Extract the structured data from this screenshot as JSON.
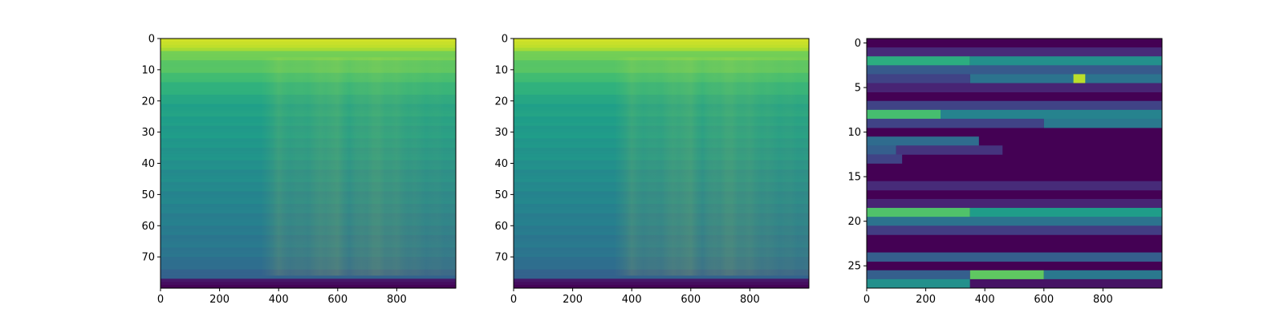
{
  "chart_data": [
    {
      "type": "heatmap",
      "colormap": "viridis",
      "title": "",
      "xlabel": "",
      "ylabel": "",
      "xlim": [
        0,
        1000
      ],
      "ylim": [
        80,
        0
      ],
      "n_rows": 80,
      "n_cols": 1000,
      "x_ticks": [
        0,
        200,
        400,
        600,
        800
      ],
      "y_ticks": [
        0,
        10,
        20,
        30,
        40,
        50,
        60,
        70
      ],
      "row_intensity": [
        {
          "row": 0,
          "value": 0.95
        },
        {
          "row": 2,
          "value": 0.9
        },
        {
          "row": 4,
          "value": 0.8
        },
        {
          "row": 8,
          "value": 0.74
        },
        {
          "row": 10,
          "value": 0.72
        },
        {
          "row": 14,
          "value": 0.66
        },
        {
          "row": 20,
          "value": 0.58
        },
        {
          "row": 30,
          "value": 0.54
        },
        {
          "row": 40,
          "value": 0.5
        },
        {
          "row": 50,
          "value": 0.46
        },
        {
          "row": 60,
          "value": 0.42
        },
        {
          "row": 70,
          "value": 0.38
        },
        {
          "row": 76,
          "value": 0.3
        },
        {
          "row": 77,
          "value": 0.08
        },
        {
          "row": 79,
          "value": 0.0
        }
      ],
      "column_activity": [
        {
          "col": 0,
          "value": 0.0
        },
        {
          "col": 340,
          "value": 0.0
        },
        {
          "col": 400,
          "value": 0.45
        },
        {
          "col": 450,
          "value": 0.3
        },
        {
          "col": 500,
          "value": 0.35
        },
        {
          "col": 590,
          "value": 0.6
        },
        {
          "col": 640,
          "value": 0.3
        },
        {
          "col": 720,
          "value": 0.6
        },
        {
          "col": 800,
          "value": 0.5
        },
        {
          "col": 880,
          "value": 0.35
        },
        {
          "col": 1000,
          "value": 0.3
        }
      ]
    },
    {
      "type": "heatmap",
      "colormap": "viridis",
      "title": "",
      "xlabel": "",
      "ylabel": "",
      "xlim": [
        0,
        1000
      ],
      "ylim": [
        80,
        0
      ],
      "n_rows": 80,
      "n_cols": 1000,
      "x_ticks": [
        0,
        200,
        400,
        600,
        800
      ],
      "y_ticks": [
        0,
        10,
        20,
        30,
        40,
        50,
        60,
        70
      ],
      "row_intensity": [
        {
          "row": 0,
          "value": 0.95
        },
        {
          "row": 2,
          "value": 0.9
        },
        {
          "row": 4,
          "value": 0.8
        },
        {
          "row": 8,
          "value": 0.74
        },
        {
          "row": 10,
          "value": 0.72
        },
        {
          "row": 14,
          "value": 0.66
        },
        {
          "row": 20,
          "value": 0.58
        },
        {
          "row": 30,
          "value": 0.54
        },
        {
          "row": 40,
          "value": 0.5
        },
        {
          "row": 50,
          "value": 0.46
        },
        {
          "row": 60,
          "value": 0.42
        },
        {
          "row": 70,
          "value": 0.38
        },
        {
          "row": 76,
          "value": 0.3
        },
        {
          "row": 77,
          "value": 0.08
        },
        {
          "row": 79,
          "value": 0.0
        }
      ],
      "column_activity": [
        {
          "col": 0,
          "value": 0.0
        },
        {
          "col": 340,
          "value": 0.0
        },
        {
          "col": 400,
          "value": 0.45
        },
        {
          "col": 450,
          "value": 0.3
        },
        {
          "col": 500,
          "value": 0.35
        },
        {
          "col": 590,
          "value": 0.6
        },
        {
          "col": 640,
          "value": 0.3
        },
        {
          "col": 720,
          "value": 0.6
        },
        {
          "col": 800,
          "value": 0.5
        },
        {
          "col": 880,
          "value": 0.35
        },
        {
          "col": 1000,
          "value": 0.3
        }
      ]
    },
    {
      "type": "heatmap",
      "colormap": "viridis",
      "title": "",
      "xlabel": "",
      "ylabel": "",
      "xlim": [
        0,
        1000
      ],
      "ylim": [
        27.5,
        -0.5
      ],
      "n_rows": 28,
      "n_cols": 1000,
      "x_ticks": [
        0,
        200,
        400,
        600,
        800
      ],
      "y_ticks": [
        0,
        5,
        10,
        15,
        20,
        25
      ],
      "row_segments": [
        {
          "row": 1,
          "segments": [
            [
              0,
              1000,
              0.12
            ]
          ]
        },
        {
          "row": 2,
          "segments": [
            [
              0,
              350,
              0.62
            ],
            [
              350,
              1000,
              0.5
            ]
          ]
        },
        {
          "row": 3,
          "segments": [
            [
              0,
              1000,
              0.28
            ]
          ]
        },
        {
          "row": 4,
          "segments": [
            [
              0,
              350,
              0.2
            ],
            [
              350,
              1000,
              0.38
            ],
            [
              700,
              740,
              0.9
            ]
          ]
        },
        {
          "row": 5,
          "segments": [
            [
              0,
              1000,
              0.1
            ]
          ]
        },
        {
          "row": 7,
          "segments": [
            [
              0,
              1000,
              0.2
            ]
          ]
        },
        {
          "row": 8,
          "segments": [
            [
              0,
              250,
              0.7
            ],
            [
              250,
              1000,
              0.45
            ]
          ]
        },
        {
          "row": 9,
          "segments": [
            [
              0,
              600,
              0.2
            ],
            [
              600,
              1000,
              0.4
            ]
          ]
        },
        {
          "row": 11,
          "segments": [
            [
              0,
              380,
              0.35
            ]
          ]
        },
        {
          "row": 12,
          "segments": [
            [
              0,
              100,
              0.3
            ],
            [
              100,
              460,
              0.15
            ]
          ]
        },
        {
          "row": 13,
          "segments": [
            [
              0,
              120,
              0.2
            ]
          ]
        },
        {
          "row": 16,
          "segments": [
            [
              0,
              1000,
              0.12
            ]
          ]
        },
        {
          "row": 18,
          "segments": [
            [
              0,
              1000,
              0.1
            ]
          ]
        },
        {
          "row": 19,
          "segments": [
            [
              0,
              350,
              0.72
            ],
            [
              350,
              1000,
              0.55
            ]
          ]
        },
        {
          "row": 20,
          "segments": [
            [
              0,
              1000,
              0.38
            ]
          ]
        },
        {
          "row": 21,
          "segments": [
            [
              0,
              1000,
              0.18
            ]
          ]
        },
        {
          "row": 24,
          "segments": [
            [
              0,
              1000,
              0.3
            ]
          ]
        },
        {
          "row": 26,
          "segments": [
            [
              0,
              350,
              0.3
            ],
            [
              350,
              600,
              0.75
            ],
            [
              600,
              1000,
              0.4
            ]
          ]
        },
        {
          "row": 27,
          "segments": [
            [
              0,
              350,
              0.5
            ],
            [
              350,
              1000,
              0.05
            ]
          ]
        }
      ]
    }
  ]
}
